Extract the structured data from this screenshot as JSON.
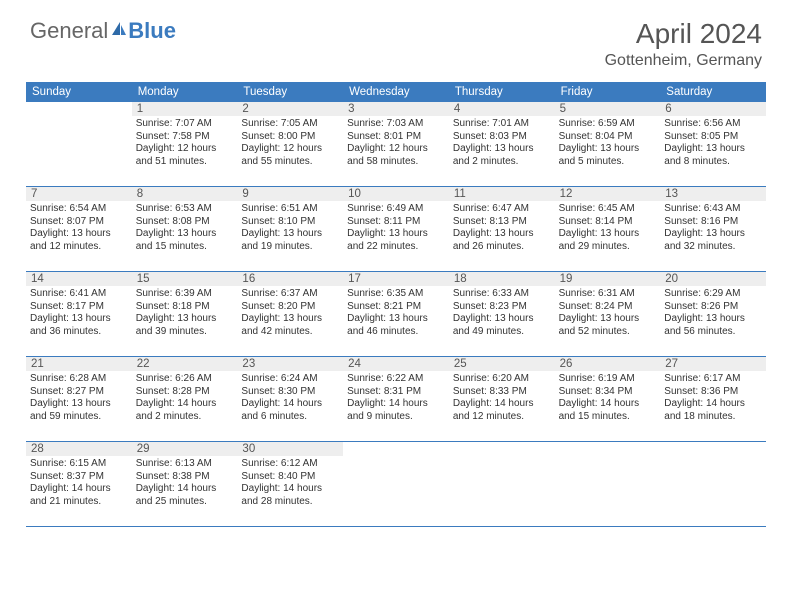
{
  "logo": {
    "general": "General",
    "blue": "Blue"
  },
  "title": "April 2024",
  "location": "Gottenheim, Germany",
  "colors": {
    "header_bg": "#3b7bbf",
    "header_text": "#ffffff",
    "daynum_bg": "#eeeeee",
    "border": "#3b7bbf",
    "body_text": "#333333",
    "title_text": "#555555"
  },
  "day_names": [
    "Sunday",
    "Monday",
    "Tuesday",
    "Wednesday",
    "Thursday",
    "Friday",
    "Saturday"
  ],
  "weeks": [
    [
      null,
      {
        "n": "1",
        "sr": "7:07 AM",
        "ss": "7:58 PM",
        "dl": "12 hours and 51 minutes."
      },
      {
        "n": "2",
        "sr": "7:05 AM",
        "ss": "8:00 PM",
        "dl": "12 hours and 55 minutes."
      },
      {
        "n": "3",
        "sr": "7:03 AM",
        "ss": "8:01 PM",
        "dl": "12 hours and 58 minutes."
      },
      {
        "n": "4",
        "sr": "7:01 AM",
        "ss": "8:03 PM",
        "dl": "13 hours and 2 minutes."
      },
      {
        "n": "5",
        "sr": "6:59 AM",
        "ss": "8:04 PM",
        "dl": "13 hours and 5 minutes."
      },
      {
        "n": "6",
        "sr": "6:56 AM",
        "ss": "8:05 PM",
        "dl": "13 hours and 8 minutes."
      }
    ],
    [
      {
        "n": "7",
        "sr": "6:54 AM",
        "ss": "8:07 PM",
        "dl": "13 hours and 12 minutes."
      },
      {
        "n": "8",
        "sr": "6:53 AM",
        "ss": "8:08 PM",
        "dl": "13 hours and 15 minutes."
      },
      {
        "n": "9",
        "sr": "6:51 AM",
        "ss": "8:10 PM",
        "dl": "13 hours and 19 minutes."
      },
      {
        "n": "10",
        "sr": "6:49 AM",
        "ss": "8:11 PM",
        "dl": "13 hours and 22 minutes."
      },
      {
        "n": "11",
        "sr": "6:47 AM",
        "ss": "8:13 PM",
        "dl": "13 hours and 26 minutes."
      },
      {
        "n": "12",
        "sr": "6:45 AM",
        "ss": "8:14 PM",
        "dl": "13 hours and 29 minutes."
      },
      {
        "n": "13",
        "sr": "6:43 AM",
        "ss": "8:16 PM",
        "dl": "13 hours and 32 minutes."
      }
    ],
    [
      {
        "n": "14",
        "sr": "6:41 AM",
        "ss": "8:17 PM",
        "dl": "13 hours and 36 minutes."
      },
      {
        "n": "15",
        "sr": "6:39 AM",
        "ss": "8:18 PM",
        "dl": "13 hours and 39 minutes."
      },
      {
        "n": "16",
        "sr": "6:37 AM",
        "ss": "8:20 PM",
        "dl": "13 hours and 42 minutes."
      },
      {
        "n": "17",
        "sr": "6:35 AM",
        "ss": "8:21 PM",
        "dl": "13 hours and 46 minutes."
      },
      {
        "n": "18",
        "sr": "6:33 AM",
        "ss": "8:23 PM",
        "dl": "13 hours and 49 minutes."
      },
      {
        "n": "19",
        "sr": "6:31 AM",
        "ss": "8:24 PM",
        "dl": "13 hours and 52 minutes."
      },
      {
        "n": "20",
        "sr": "6:29 AM",
        "ss": "8:26 PM",
        "dl": "13 hours and 56 minutes."
      }
    ],
    [
      {
        "n": "21",
        "sr": "6:28 AM",
        "ss": "8:27 PM",
        "dl": "13 hours and 59 minutes."
      },
      {
        "n": "22",
        "sr": "6:26 AM",
        "ss": "8:28 PM",
        "dl": "14 hours and 2 minutes."
      },
      {
        "n": "23",
        "sr": "6:24 AM",
        "ss": "8:30 PM",
        "dl": "14 hours and 6 minutes."
      },
      {
        "n": "24",
        "sr": "6:22 AM",
        "ss": "8:31 PM",
        "dl": "14 hours and 9 minutes."
      },
      {
        "n": "25",
        "sr": "6:20 AM",
        "ss": "8:33 PM",
        "dl": "14 hours and 12 minutes."
      },
      {
        "n": "26",
        "sr": "6:19 AM",
        "ss": "8:34 PM",
        "dl": "14 hours and 15 minutes."
      },
      {
        "n": "27",
        "sr": "6:17 AM",
        "ss": "8:36 PM",
        "dl": "14 hours and 18 minutes."
      }
    ],
    [
      {
        "n": "28",
        "sr": "6:15 AM",
        "ss": "8:37 PM",
        "dl": "14 hours and 21 minutes."
      },
      {
        "n": "29",
        "sr": "6:13 AM",
        "ss": "8:38 PM",
        "dl": "14 hours and 25 minutes."
      },
      {
        "n": "30",
        "sr": "6:12 AM",
        "ss": "8:40 PM",
        "dl": "14 hours and 28 minutes."
      },
      null,
      null,
      null,
      null
    ]
  ],
  "labels": {
    "sunrise": "Sunrise: ",
    "sunset": "Sunset: ",
    "daylight": "Daylight: "
  }
}
